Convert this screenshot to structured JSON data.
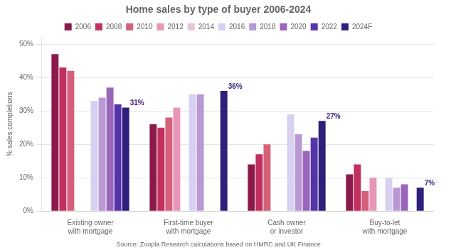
{
  "chart_data": {
    "type": "bar",
    "title": "Home sales by type of buyer 2006-2024",
    "ylabel": "% sales completions",
    "source": "Source: Zoopla Research calculations based on HMRC and UK Finance",
    "categories": [
      "Existing owner\nwith mortgage",
      "First-time buyer\nwith mortgage",
      "Cash owner\nor investor",
      "Buy-to-let\nwith mortgage"
    ],
    "series": [
      {
        "name": "2006",
        "color": "#8b1a4a",
        "values": [
          47,
          26,
          14,
          11
        ]
      },
      {
        "name": "2008",
        "color": "#c13060",
        "values": [
          43,
          25,
          17,
          14
        ]
      },
      {
        "name": "2010",
        "color": "#d4607a",
        "values": [
          42,
          28,
          20,
          6
        ]
      },
      {
        "name": "2012",
        "color": "#e896b8",
        "values": [
          null,
          31,
          null,
          10
        ]
      },
      {
        "name": "2014",
        "color": "#e8c4d8",
        "values": [
          null,
          null,
          null,
          null
        ]
      },
      {
        "name": "2016",
        "color": "#d8d0f0",
        "values": [
          33,
          35,
          29,
          10
        ]
      },
      {
        "name": "2018",
        "color": "#b899d4",
        "values": [
          34,
          35,
          23,
          7
        ]
      },
      {
        "name": "2020",
        "color": "#9966bb",
        "values": [
          37,
          null,
          18,
          8
        ]
      },
      {
        "name": "2022",
        "color": "#5533aa",
        "values": [
          32,
          null,
          22,
          null
        ]
      },
      {
        "name": "2024F",
        "color": "#2d1f7a",
        "values": [
          31,
          36,
          27,
          7
        ]
      }
    ],
    "annotations": [
      {
        "category": "Existing owner\nwith mortgage",
        "series": "2024F",
        "text": "31%"
      },
      {
        "category": "First-time buyer\nwith mortgage",
        "series": "2024F",
        "text": "36%"
      },
      {
        "category": "Cash owner\nor investor",
        "series": "2024F",
        "text": "27%"
      },
      {
        "category": "Buy-to-let\nwith mortgage",
        "series": "2024F",
        "text": "7%"
      }
    ],
    "ylim": [
      0,
      52
    ],
    "yticks": [
      {
        "value": 0,
        "label": "0%"
      },
      {
        "value": 10,
        "label": "10%"
      },
      {
        "value": 20,
        "label": "20%"
      },
      {
        "value": 30,
        "label": "30%"
      },
      {
        "value": 40,
        "label": "40%"
      },
      {
        "value": 50,
        "label": "50%"
      }
    ],
    "grid": true,
    "legend": "top"
  }
}
